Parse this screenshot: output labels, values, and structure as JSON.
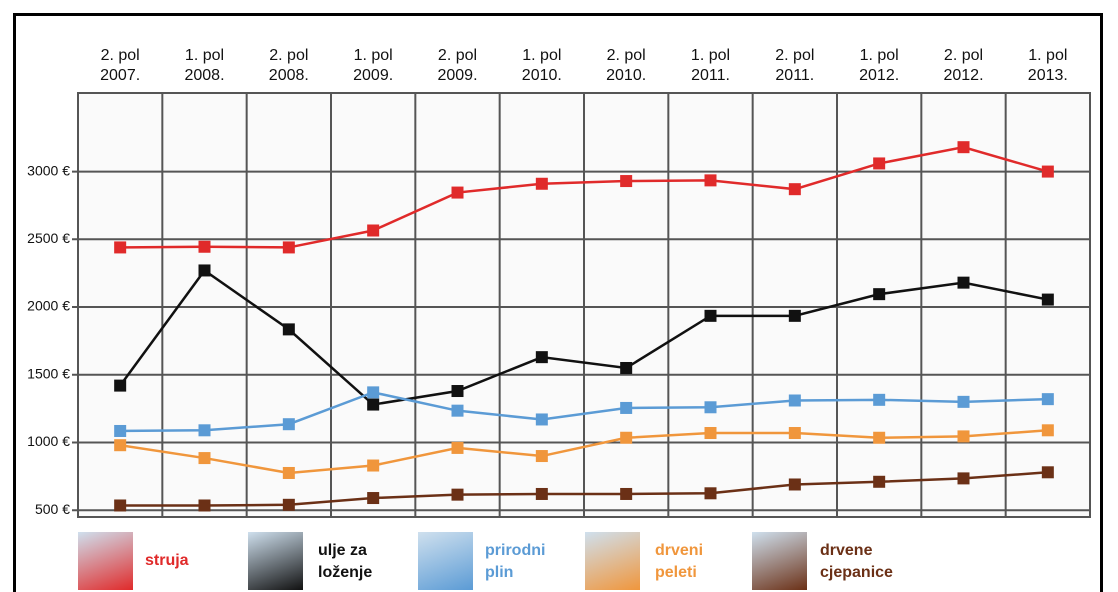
{
  "chart_data": {
    "type": "line",
    "categories": [
      "2. pol 2007.",
      "1. pol 2008.",
      "2. pol 2008.",
      "1. pol 2009.",
      "2. pol 2009.",
      "1. pol 2010.",
      "2. pol 2010.",
      "1. pol 2011.",
      "2. pol 2011.",
      "1. pol 2012.",
      "2. pol 2012.",
      "1. pol 2013."
    ],
    "series": [
      {
        "name": "struja",
        "color": "#e02a2a",
        "values": [
          2440,
          2445,
          2440,
          2565,
          2845,
          2910,
          2930,
          2935,
          2870,
          3060,
          3180,
          3000
        ]
      },
      {
        "name": "ulje za loženje",
        "color": "#111111",
        "values": [
          1420,
          2270,
          1835,
          1280,
          1380,
          1630,
          1550,
          1935,
          1935,
          2095,
          2180,
          2055
        ]
      },
      {
        "name": "prirodni plin",
        "color": "#5b9bd5",
        "values": [
          1085,
          1090,
          1135,
          1370,
          1235,
          1170,
          1255,
          1260,
          1310,
          1315,
          1300,
          1320
        ]
      },
      {
        "name": "drveni peleti",
        "color": "#f0963c",
        "values": [
          980,
          885,
          775,
          830,
          960,
          900,
          1035,
          1070,
          1070,
          1035,
          1045,
          1090
        ]
      },
      {
        "name": "drvene cjepanice",
        "color": "#6b3016",
        "values": [
          535,
          535,
          540,
          590,
          615,
          620,
          620,
          625,
          690,
          710,
          735,
          780
        ]
      }
    ],
    "ylim": [
      450,
      3580
    ],
    "yticks": [
      {
        "value": 500,
        "label": "500 €"
      },
      {
        "value": 1000,
        "label": "1000 €"
      },
      {
        "value": 1500,
        "label": "1500 €"
      },
      {
        "value": 2000,
        "label": "2000 €"
      },
      {
        "value": 2500,
        "label": "2500 €"
      },
      {
        "value": 3000,
        "label": "3000 €"
      }
    ],
    "grid": true
  }
}
